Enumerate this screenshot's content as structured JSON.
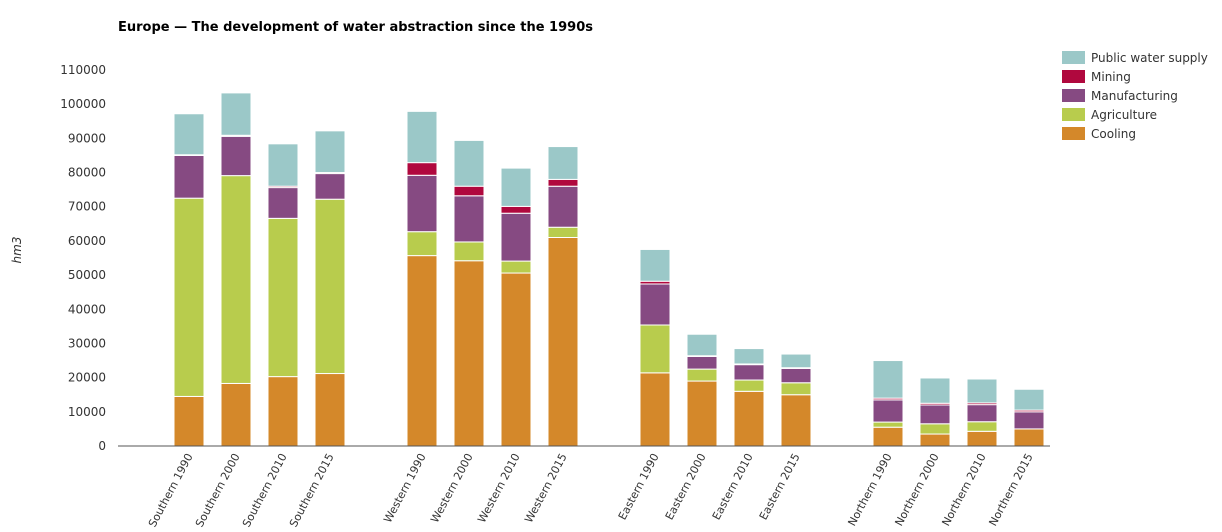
{
  "chart_data": {
    "type": "bar",
    "stacked": true,
    "title": "Europe — The development of water abstraction since the 1990s",
    "ylabel": "hm3",
    "xlabel": "",
    "ylim": [
      0,
      110000
    ],
    "yticks": [
      0,
      10000,
      20000,
      30000,
      40000,
      50000,
      60000,
      70000,
      80000,
      90000,
      100000,
      110000
    ],
    "grid": false,
    "legend_position": "top-right",
    "groups": [
      [
        "Southern 1990",
        "Southern 2000",
        "Southern 2010",
        "Southern 2015"
      ],
      [
        "Western 1990",
        "Western 2000",
        "Western 2010",
        "Western 2015"
      ],
      [
        "Eastern 1990",
        "Eastern 2000",
        "Eastern 2010",
        "Eastern 2015"
      ],
      [
        "Northern 1990",
        "Northern 2000",
        "Northern 2010",
        "Northern 2015"
      ]
    ],
    "categories": [
      "Southern 1990",
      "Southern 2000",
      "Southern 2010",
      "Southern 2015",
      "Western 1990",
      "Western 2000",
      "Western 2010",
      "Western 2015",
      "Eastern 1990",
      "Eastern 2000",
      "Eastern 2010",
      "Eastern 2015",
      "Northern 1990",
      "Northern 2000",
      "Northern 2010",
      "Northern 2015"
    ],
    "series": [
      {
        "name": "Cooling",
        "color": "#d4882a",
        "values": [
          14500,
          18300,
          20300,
          21200,
          55700,
          54200,
          50600,
          61000,
          21400,
          19000,
          16000,
          15000,
          5500,
          3500,
          4300,
          5000
        ]
      },
      {
        "name": "Agriculture",
        "color": "#b8cc4d",
        "values": [
          58000,
          60800,
          46300,
          51000,
          7000,
          5500,
          3500,
          3000,
          14000,
          3500,
          3300,
          3500,
          1500,
          3000,
          2800,
          0
        ]
      },
      {
        "name": "Manufacturing",
        "color": "#864a82",
        "values": [
          12500,
          11500,
          9000,
          7500,
          16500,
          13500,
          14000,
          12000,
          12000,
          3700,
          4500,
          4200,
          6500,
          5500,
          5000,
          5000
        ]
      },
      {
        "name": "Mining",
        "color": "#b0083e",
        "values": [
          200,
          300,
          400,
          300,
          3700,
          2800,
          2000,
          2000,
          800,
          200,
          200,
          200,
          500,
          500,
          500,
          500
        ]
      },
      {
        "name": "Public water supply",
        "color": "#9bc8c8",
        "values": [
          12000,
          12400,
          12400,
          12200,
          15000,
          13400,
          11200,
          9600,
          9300,
          6300,
          4500,
          4000,
          11000,
          7400,
          7000,
          6100
        ]
      }
    ],
    "legend_order": [
      "Public water supply",
      "Mining",
      "Manufacturing",
      "Agriculture",
      "Cooling"
    ]
  }
}
